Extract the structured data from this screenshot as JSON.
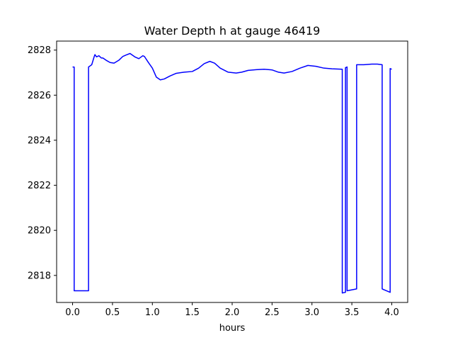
{
  "chart_data": {
    "type": "line",
    "title": "Water Depth h at gauge 46419",
    "xlabel": "hours",
    "ylabel": "",
    "xlim": [
      -0.2,
      4.2
    ],
    "ylim": [
      2816.8,
      2828.4
    ],
    "xticks": [
      0.0,
      0.5,
      1.0,
      1.5,
      2.0,
      2.5,
      3.0,
      3.5,
      4.0
    ],
    "xtick_labels": [
      "0.0",
      "0.5",
      "1.0",
      "1.5",
      "2.0",
      "2.5",
      "3.0",
      "3.5",
      "4.0"
    ],
    "yticks": [
      2818,
      2820,
      2822,
      2824,
      2826,
      2828
    ],
    "ytick_labels": [
      "2818",
      "2820",
      "2822",
      "2824",
      "2826",
      "2828"
    ],
    "grid": false,
    "series": [
      {
        "color": "#0000ff",
        "points": [
          [
            0.0,
            2827.25
          ],
          [
            0.02,
            2827.25
          ],
          [
            0.02,
            2817.32
          ],
          [
            0.2,
            2817.32
          ],
          [
            0.2,
            2827.25
          ],
          [
            0.24,
            2827.35
          ],
          [
            0.27,
            2827.7
          ],
          [
            0.28,
            2827.8
          ],
          [
            0.3,
            2827.7
          ],
          [
            0.33,
            2827.75
          ],
          [
            0.36,
            2827.65
          ],
          [
            0.38,
            2827.65
          ],
          [
            0.42,
            2827.55
          ],
          [
            0.47,
            2827.45
          ],
          [
            0.52,
            2827.42
          ],
          [
            0.58,
            2827.55
          ],
          [
            0.63,
            2827.72
          ],
          [
            0.67,
            2827.78
          ],
          [
            0.72,
            2827.85
          ],
          [
            0.78,
            2827.7
          ],
          [
            0.83,
            2827.62
          ],
          [
            0.88,
            2827.75
          ],
          [
            0.9,
            2827.72
          ],
          [
            0.95,
            2827.45
          ],
          [
            1.0,
            2827.2
          ],
          [
            1.05,
            2826.8
          ],
          [
            1.1,
            2826.68
          ],
          [
            1.15,
            2826.72
          ],
          [
            1.22,
            2826.85
          ],
          [
            1.3,
            2826.97
          ],
          [
            1.4,
            2827.02
          ],
          [
            1.5,
            2827.05
          ],
          [
            1.58,
            2827.2
          ],
          [
            1.65,
            2827.4
          ],
          [
            1.72,
            2827.5
          ],
          [
            1.78,
            2827.42
          ],
          [
            1.85,
            2827.2
          ],
          [
            1.95,
            2827.02
          ],
          [
            2.05,
            2826.98
          ],
          [
            2.12,
            2827.02
          ],
          [
            2.2,
            2827.1
          ],
          [
            2.3,
            2827.13
          ],
          [
            2.4,
            2827.15
          ],
          [
            2.5,
            2827.12
          ],
          [
            2.58,
            2827.02
          ],
          [
            2.65,
            2826.98
          ],
          [
            2.75,
            2827.05
          ],
          [
            2.85,
            2827.2
          ],
          [
            2.95,
            2827.32
          ],
          [
            3.05,
            2827.28
          ],
          [
            3.15,
            2827.2
          ],
          [
            3.25,
            2827.17
          ],
          [
            3.38,
            2827.15
          ],
          [
            3.38,
            2817.22
          ],
          [
            3.42,
            2817.25
          ],
          [
            3.42,
            2827.22
          ],
          [
            3.44,
            2827.25
          ],
          [
            3.44,
            2817.32
          ],
          [
            3.56,
            2817.4
          ],
          [
            3.56,
            2827.35
          ],
          [
            3.65,
            2827.35
          ],
          [
            3.75,
            2827.38
          ],
          [
            3.82,
            2827.38
          ],
          [
            3.88,
            2827.35
          ],
          [
            3.88,
            2817.4
          ],
          [
            3.98,
            2817.25
          ],
          [
            3.98,
            2827.18
          ],
          [
            4.0,
            2827.15
          ]
        ]
      }
    ]
  }
}
